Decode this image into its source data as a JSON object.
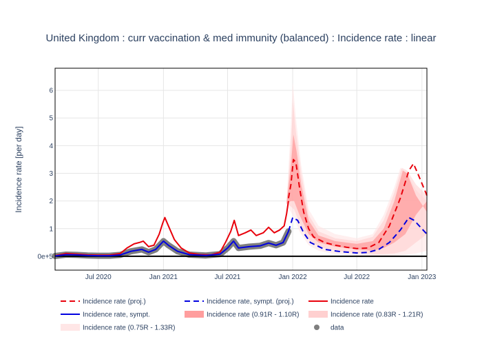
{
  "chart_data": {
    "type": "line",
    "title": "United Kingdom : curr vaccination & med immunity (balanced) : Incidence rate : linear",
    "xlabel": "",
    "ylabel": "Incidence rate [per day]",
    "y_scale": "linear",
    "grid": true,
    "legend_position": "bottom",
    "x_range": [
      "2020-03-01",
      "2023-01-15"
    ],
    "y_range": [
      -0.5,
      6.8
    ],
    "x_ticks": [
      {
        "date": "2020-07-01",
        "label": "Jul 2020"
      },
      {
        "date": "2021-01-01",
        "label": "Jan 2021"
      },
      {
        "date": "2021-07-01",
        "label": "Jul 2021"
      },
      {
        "date": "2022-01-01",
        "label": "Jan 2022"
      },
      {
        "date": "2022-07-01",
        "label": "Jul 2022"
      },
      {
        "date": "2023-01-01",
        "label": "Jan 2023"
      }
    ],
    "y_ticks": [
      {
        "value": 0,
        "label": "0e+5"
      },
      {
        "value": 1,
        "label": "1"
      },
      {
        "value": 2,
        "label": "2"
      },
      {
        "value": 3,
        "label": "3"
      },
      {
        "value": 4,
        "label": "4"
      },
      {
        "value": 5,
        "label": "5"
      },
      {
        "value": 6,
        "label": "6"
      }
    ],
    "series": [
      {
        "name": "Incidence rate",
        "style": "solid",
        "color": "#e8000b",
        "points": [
          [
            "2020-03-01",
            0.02
          ],
          [
            "2020-04-01",
            0.1
          ],
          [
            "2020-05-01",
            0.08
          ],
          [
            "2020-06-01",
            0.05
          ],
          [
            "2020-07-01",
            0.04
          ],
          [
            "2020-08-01",
            0.04
          ],
          [
            "2020-09-01",
            0.1
          ],
          [
            "2020-09-20",
            0.3
          ],
          [
            "2020-10-10",
            0.45
          ],
          [
            "2020-10-25",
            0.5
          ],
          [
            "2020-11-05",
            0.55
          ],
          [
            "2020-11-20",
            0.35
          ],
          [
            "2020-12-05",
            0.4
          ],
          [
            "2020-12-20",
            0.8
          ],
          [
            "2020-12-30",
            1.2
          ],
          [
            "2021-01-05",
            1.4
          ],
          [
            "2021-01-15",
            1.1
          ],
          [
            "2021-02-01",
            0.6
          ],
          [
            "2021-02-20",
            0.3
          ],
          [
            "2021-03-15",
            0.12
          ],
          [
            "2021-04-15",
            0.06
          ],
          [
            "2021-05-15",
            0.05
          ],
          [
            "2021-06-10",
            0.15
          ],
          [
            "2021-06-25",
            0.5
          ],
          [
            "2021-07-10",
            0.9
          ],
          [
            "2021-07-20",
            1.3
          ],
          [
            "2021-08-01",
            0.75
          ],
          [
            "2021-08-20",
            0.85
          ],
          [
            "2021-09-05",
            0.95
          ],
          [
            "2021-09-20",
            0.75
          ],
          [
            "2021-10-10",
            0.85
          ],
          [
            "2021-10-25",
            1.05
          ],
          [
            "2021-11-10",
            0.85
          ],
          [
            "2021-11-25",
            0.95
          ],
          [
            "2021-12-08",
            1.1
          ],
          [
            "2021-12-15",
            1.55
          ],
          [
            "2021-12-20",
            2.0
          ]
        ]
      },
      {
        "name": "Incidence rate (proj.)",
        "style": "dashed",
        "color": "#e8000b",
        "points": [
          [
            "2021-12-20",
            2.1
          ],
          [
            "2021-12-27",
            2.6
          ],
          [
            "2022-01-03",
            3.5
          ],
          [
            "2022-01-10",
            3.4
          ],
          [
            "2022-01-20",
            2.5
          ],
          [
            "2022-02-01",
            1.6
          ],
          [
            "2022-02-15",
            1.0
          ],
          [
            "2022-03-01",
            0.7
          ],
          [
            "2022-04-01",
            0.5
          ],
          [
            "2022-05-01",
            0.4
          ],
          [
            "2022-06-01",
            0.33
          ],
          [
            "2022-07-01",
            0.28
          ],
          [
            "2022-08-01",
            0.3
          ],
          [
            "2022-09-01",
            0.5
          ],
          [
            "2022-10-01",
            1.1
          ],
          [
            "2022-11-01",
            2.1
          ],
          [
            "2022-11-25",
            3.1
          ],
          [
            "2022-12-08",
            3.35
          ],
          [
            "2022-12-20",
            3.0
          ],
          [
            "2023-01-15",
            2.2
          ]
        ]
      },
      {
        "name": "Incidence rate, sympt.",
        "style": "solid",
        "color": "#0000e0",
        "points": [
          [
            "2020-03-01",
            0.01
          ],
          [
            "2020-04-01",
            0.06
          ],
          [
            "2020-05-01",
            0.05
          ],
          [
            "2020-06-01",
            0.03
          ],
          [
            "2020-07-01",
            0.02
          ],
          [
            "2020-08-01",
            0.02
          ],
          [
            "2020-09-01",
            0.05
          ],
          [
            "2020-10-01",
            0.18
          ],
          [
            "2020-11-01",
            0.25
          ],
          [
            "2020-11-20",
            0.15
          ],
          [
            "2020-12-10",
            0.25
          ],
          [
            "2021-01-01",
            0.55
          ],
          [
            "2021-01-15",
            0.4
          ],
          [
            "2021-02-10",
            0.18
          ],
          [
            "2021-03-15",
            0.06
          ],
          [
            "2021-05-01",
            0.03
          ],
          [
            "2021-06-10",
            0.08
          ],
          [
            "2021-07-01",
            0.3
          ],
          [
            "2021-07-18",
            0.55
          ],
          [
            "2021-08-01",
            0.3
          ],
          [
            "2021-09-01",
            0.35
          ],
          [
            "2021-10-01",
            0.38
          ],
          [
            "2021-10-25",
            0.48
          ],
          [
            "2021-11-15",
            0.4
          ],
          [
            "2021-12-05",
            0.5
          ],
          [
            "2021-12-20",
            0.9
          ]
        ]
      },
      {
        "name": "Incidence rate, sympt. (proj.)",
        "style": "dashed",
        "color": "#0000e0",
        "points": [
          [
            "2021-12-20",
            0.9
          ],
          [
            "2022-01-01",
            1.4
          ],
          [
            "2022-01-15",
            1.3
          ],
          [
            "2022-02-01",
            0.85
          ],
          [
            "2022-02-20",
            0.5
          ],
          [
            "2022-04-01",
            0.25
          ],
          [
            "2022-05-15",
            0.17
          ],
          [
            "2022-07-01",
            0.12
          ],
          [
            "2022-08-01",
            0.14
          ],
          [
            "2022-09-01",
            0.25
          ],
          [
            "2022-10-01",
            0.5
          ],
          [
            "2022-11-01",
            0.95
          ],
          [
            "2022-11-25",
            1.4
          ],
          [
            "2022-12-10",
            1.3
          ],
          [
            "2023-01-15",
            0.8
          ]
        ]
      },
      {
        "name": "data",
        "style": "markers",
        "color": "#7f7f7f",
        "note_range": [
          "2020-03-01",
          "2021-12-20"
        ]
      }
    ],
    "bands": [
      {
        "name": "Incidence rate (0.91R - 1.10R)",
        "color": "#ff9e9e",
        "opacity": 0.75,
        "upper": [
          [
            "2021-12-15",
            2.0
          ],
          [
            "2021-12-27",
            3.3
          ],
          [
            "2022-01-03",
            4.4
          ],
          [
            "2022-01-12",
            3.8
          ],
          [
            "2022-01-25",
            2.6
          ],
          [
            "2022-02-15",
            1.3
          ],
          [
            "2022-03-15",
            0.75
          ],
          [
            "2022-05-01",
            0.55
          ],
          [
            "2022-07-01",
            0.45
          ],
          [
            "2022-08-15",
            0.55
          ],
          [
            "2022-09-15",
            1.0
          ],
          [
            "2022-10-15",
            2.0
          ],
          [
            "2022-11-08",
            3.1
          ],
          [
            "2022-11-20",
            3.0
          ],
          [
            "2022-12-15",
            2.2
          ],
          [
            "2023-01-15",
            1.6
          ]
        ],
        "lower": [
          [
            "2021-12-15",
            1.9
          ],
          [
            "2021-12-27",
            2.0
          ],
          [
            "2022-01-05",
            2.0
          ],
          [
            "2022-01-20",
            1.5
          ],
          [
            "2022-02-15",
            0.8
          ],
          [
            "2022-03-15",
            0.5
          ],
          [
            "2022-05-01",
            0.35
          ],
          [
            "2022-07-01",
            0.25
          ],
          [
            "2022-08-15",
            0.2
          ],
          [
            "2022-09-15",
            0.3
          ],
          [
            "2022-10-15",
            0.5
          ],
          [
            "2022-11-15",
            0.8
          ],
          [
            "2022-12-15",
            1.5
          ],
          [
            "2023-01-15",
            2.0
          ]
        ]
      },
      {
        "name": "Incidence rate (0.83R - 1.21R)",
        "color": "#ffc9c9",
        "opacity": 0.5,
        "upper": [
          [
            "2021-12-15",
            2.0
          ],
          [
            "2021-12-27",
            4.0
          ],
          [
            "2022-01-02",
            5.6
          ],
          [
            "2022-01-10",
            4.5
          ],
          [
            "2022-01-25",
            3.0
          ],
          [
            "2022-02-15",
            1.5
          ],
          [
            "2022-03-15",
            0.9
          ],
          [
            "2022-05-01",
            0.65
          ],
          [
            "2022-07-01",
            0.55
          ],
          [
            "2022-08-15",
            0.7
          ],
          [
            "2022-09-15",
            1.3
          ],
          [
            "2022-10-15",
            2.3
          ],
          [
            "2022-11-05",
            3.2
          ],
          [
            "2022-11-20",
            3.1
          ],
          [
            "2022-12-15",
            2.6
          ],
          [
            "2023-01-15",
            2.2
          ]
        ],
        "lower": [
          [
            "2021-12-15",
            1.9
          ],
          [
            "2021-12-27",
            1.8
          ],
          [
            "2022-01-05",
            1.7
          ],
          [
            "2022-01-20",
            1.2
          ],
          [
            "2022-02-15",
            0.6
          ],
          [
            "2022-03-15",
            0.35
          ],
          [
            "2022-05-01",
            0.2
          ],
          [
            "2022-07-01",
            0.12
          ],
          [
            "2022-08-15",
            0.08
          ],
          [
            "2022-09-15",
            0.08
          ],
          [
            "2022-10-15",
            0.1
          ],
          [
            "2022-11-15",
            0.2
          ],
          [
            "2022-12-15",
            0.5
          ],
          [
            "2023-01-15",
            0.8
          ]
        ]
      },
      {
        "name": "Incidence rate (0.75R - 1.33R)",
        "color": "#ffe4e4",
        "opacity": 0.6,
        "upper": [
          [
            "2021-12-15",
            2.0
          ],
          [
            "2021-12-27",
            4.8
          ],
          [
            "2022-01-01",
            6.3
          ],
          [
            "2022-01-10",
            5.0
          ],
          [
            "2022-01-25",
            3.3
          ],
          [
            "2022-02-15",
            1.7
          ],
          [
            "2022-03-15",
            1.1
          ],
          [
            "2022-05-01",
            0.8
          ],
          [
            "2022-07-01",
            0.65
          ],
          [
            "2022-08-15",
            0.8
          ],
          [
            "2022-09-15",
            1.5
          ],
          [
            "2022-10-15",
            2.5
          ],
          [
            "2022-11-01",
            3.2
          ],
          [
            "2022-11-20",
            3.0
          ],
          [
            "2022-12-15",
            2.4
          ],
          [
            "2023-01-15",
            2.0
          ]
        ],
        "lower": [
          [
            "2021-12-15",
            1.9
          ],
          [
            "2021-12-27",
            1.6
          ],
          [
            "2022-01-05",
            1.4
          ],
          [
            "2022-01-20",
            0.9
          ],
          [
            "2022-02-15",
            0.4
          ],
          [
            "2022-03-15",
            0.2
          ],
          [
            "2022-05-01",
            0.08
          ],
          [
            "2022-07-01",
            0.03
          ],
          [
            "2022-08-15",
            0.02
          ],
          [
            "2022-09-15",
            0.02
          ],
          [
            "2022-10-15",
            0.03
          ],
          [
            "2022-11-15",
            0.05
          ],
          [
            "2022-12-15",
            0.1
          ],
          [
            "2023-01-15",
            0.2
          ]
        ]
      }
    ],
    "legend": [
      {
        "label": "Incidence rate (proj.)",
        "kind": "dashed",
        "color": "#e8000b"
      },
      {
        "label": "Incidence rate, sympt. (proj.)",
        "kind": "dashed",
        "color": "#0000e0"
      },
      {
        "label": "Incidence rate",
        "kind": "solid",
        "color": "#e8000b"
      },
      {
        "label": "Incidence rate, sympt.",
        "kind": "solid",
        "color": "#0000e0"
      },
      {
        "label": "Incidence rate (0.91R - 1.10R)",
        "kind": "band",
        "color": "#ff9e9e"
      },
      {
        "label": "Incidence rate (0.83R - 1.21R)",
        "kind": "band",
        "color": "#ffd0d0"
      },
      {
        "label": "Incidence rate (0.75R - 1.33R)",
        "kind": "band",
        "color": "#ffe6e6"
      },
      {
        "label": "data",
        "kind": "marker",
        "color": "#7f7f7f"
      }
    ]
  }
}
